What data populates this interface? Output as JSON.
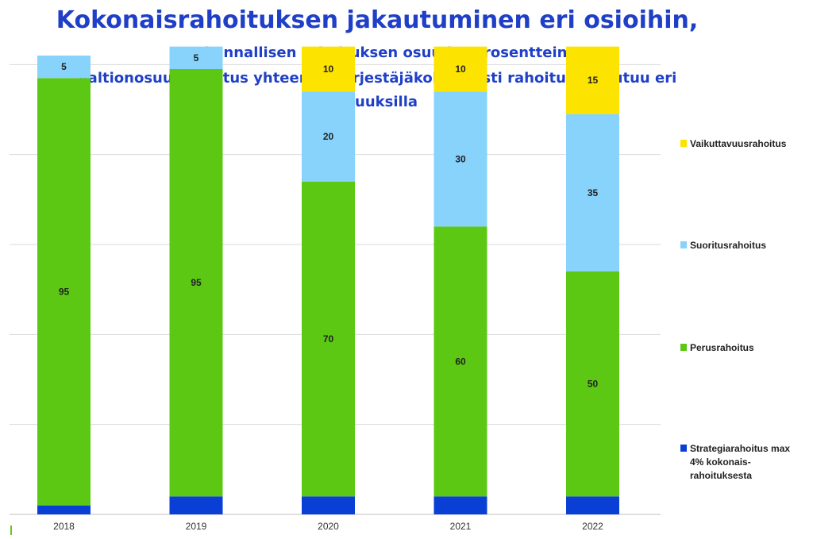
{
  "chart_data": {
    "type": "bar",
    "stacked": true,
    "title": "Kokonaisrahoituksen jakautuminen eri osioihin,",
    "subtitle_lines": [
      "Laskennallisen rahoituksen osuudet prosentteina",
      "Valtionosuusrahoitus yhteensä, järjestäjäkohtaisesti  rahoitus toteutuu eri",
      "osuuksilla"
    ],
    "categories": [
      "2018",
      "2019",
      "2020",
      "2021",
      "2022"
    ],
    "series": [
      {
        "name": "Strategiarahoitus max 4% kokonais-rahoituksesta",
        "legend_lines": [
          "Strategiarahoitus max",
          "4% kokonais-",
          "rahoituksesta"
        ],
        "color": "#0a3fd6",
        "values": [
          2,
          4,
          4,
          4,
          4
        ],
        "labels": [
          "",
          "",
          "",
          "",
          ""
        ]
      },
      {
        "name": "Perusrahoitus",
        "legend_lines": [
          "Perusrahoitus"
        ],
        "color": "#5cc814",
        "values": [
          95,
          95,
          70,
          60,
          50
        ],
        "labels": [
          "95",
          "95",
          "70",
          "60",
          "50"
        ]
      },
      {
        "name": "Suoritusrahoitus",
        "legend_lines": [
          "Suoritusrahoitus"
        ],
        "color": "#87d3fb",
        "values": [
          5,
          5,
          20,
          30,
          35
        ],
        "labels": [
          "5",
          "5",
          "20",
          "30",
          "35"
        ]
      },
      {
        "name": "Vaikuttavuusrahoitus",
        "legend_lines": [
          "Vaikuttavuusrahoitus"
        ],
        "color": "#fce300",
        "values": [
          0,
          0,
          10,
          10,
          15
        ],
        "labels": [
          "",
          "",
          "10",
          "10",
          "15"
        ]
      }
    ],
    "ylim": [
      0,
      105
    ],
    "grid": true,
    "legend_position": "right"
  }
}
